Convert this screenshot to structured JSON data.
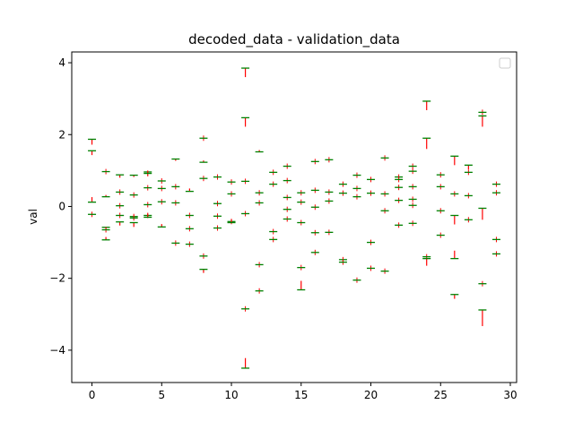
{
  "chart_data": {
    "type": "scatter",
    "title": "decoded_data - validation_data",
    "xlabel": "",
    "ylabel": "val",
    "xlim": [
      -1.45,
      30.45
    ],
    "ylim": [
      -4.9,
      4.3
    ],
    "xticks": [
      0,
      5,
      10,
      15,
      20,
      25,
      30
    ],
    "yticks": [
      -4,
      -2,
      0,
      2,
      4
    ],
    "xtick_labels": [
      "0",
      "5",
      "10",
      "15",
      "20",
      "25",
      "30"
    ],
    "ytick_labels": [
      "−4",
      "−2",
      "0",
      "2",
      "4"
    ],
    "grid": false,
    "legend": {
      "placement": "top-right",
      "entries": []
    },
    "colors": {
      "decoded_marker": "#008000",
      "difference_line": "#ff0000"
    },
    "series": [
      {
        "x": [
          0,
          0,
          0,
          0,
          1,
          1,
          1,
          1,
          1,
          2,
          2,
          2,
          2,
          2,
          3,
          3,
          3,
          3,
          3,
          4,
          4,
          4,
          4,
          4,
          4,
          5,
          5,
          5,
          5,
          6,
          6,
          6,
          6,
          7,
          7,
          7,
          7,
          8,
          8,
          8,
          8,
          8,
          9,
          9,
          9,
          9,
          10,
          10,
          10,
          10,
          11,
          11,
          11,
          11,
          11,
          11,
          12,
          12,
          12,
          12,
          12,
          13,
          13,
          13,
          13,
          14,
          14,
          14,
          14,
          14,
          15,
          15,
          15,
          15,
          15,
          16,
          16,
          16,
          16,
          16,
          17,
          17,
          17,
          17,
          18,
          18,
          18,
          18,
          19,
          19,
          19,
          19,
          20,
          20,
          20,
          20,
          21,
          21,
          21,
          21,
          22,
          22,
          22,
          22,
          22,
          23,
          23,
          23,
          23,
          23,
          23,
          24,
          24,
          24,
          24,
          25,
          25,
          25,
          25,
          26,
          26,
          26,
          26,
          26,
          27,
          27,
          27,
          27,
          28,
          28,
          28,
          28,
          28,
          29,
          29,
          29,
          29
        ],
        "y": [
          1.87,
          1.55,
          0.12,
          -0.22,
          0.97,
          0.27,
          -0.58,
          -0.65,
          -0.93,
          0.88,
          0.4,
          0.02,
          -0.25,
          -0.43,
          0.87,
          0.32,
          -0.28,
          -0.32,
          -0.45,
          0.96,
          0.92,
          0.52,
          0.05,
          -0.25,
          -0.3,
          0.71,
          0.5,
          0.13,
          -0.57,
          1.32,
          0.55,
          0.1,
          -1.02,
          0.42,
          -0.25,
          -0.62,
          -1.05,
          1.9,
          1.23,
          0.78,
          -1.38,
          -1.75,
          0.82,
          0.08,
          -0.27,
          -0.6,
          0.68,
          0.35,
          -0.42,
          -0.45,
          3.85,
          2.47,
          0.7,
          -0.2,
          -2.85,
          -4.5,
          1.52,
          0.38,
          0.1,
          -1.62,
          -2.35,
          0.95,
          0.62,
          -0.7,
          -0.92,
          1.12,
          0.72,
          0.25,
          -0.08,
          -0.35,
          0.38,
          0.12,
          -0.45,
          -1.7,
          -2.32,
          1.25,
          0.45,
          -0.02,
          -0.73,
          -1.28,
          1.3,
          0.4,
          0.15,
          -0.72,
          0.62,
          0.37,
          -1.48,
          -1.55,
          0.87,
          0.5,
          0.27,
          -2.05,
          0.75,
          0.37,
          -1.0,
          -1.72,
          1.35,
          0.35,
          -0.12,
          -1.8,
          0.82,
          0.75,
          0.53,
          0.17,
          -0.52,
          1.12,
          0.98,
          0.55,
          0.2,
          0.03,
          -0.47,
          2.93,
          1.9,
          -1.4,
          -1.45,
          0.88,
          0.55,
          -0.12,
          -0.8,
          1.4,
          0.35,
          -0.25,
          -2.45,
          -1.45,
          1.15,
          0.95,
          0.3,
          -0.37,
          2.62,
          2.52,
          -0.05,
          -2.15,
          -2.88,
          0.62,
          0.38,
          -0.92,
          -1.32
        ],
        "diff": [
          -0.15,
          -0.12,
          0.14,
          0.0,
          0.0,
          0.05,
          -0.05,
          0.0,
          0.08,
          -0.08,
          0.0,
          0.0,
          0.0,
          -0.1,
          -0.05,
          0.0,
          0.0,
          0.0,
          -0.12,
          -0.12,
          0.08,
          0.0,
          0.0,
          0.0,
          0.1,
          0.0,
          0.0,
          0.0,
          0.08,
          -0.05,
          0.0,
          0.0,
          0.0,
          0.08,
          0.0,
          0.0,
          0.0,
          0.0,
          0.05,
          0.0,
          0.0,
          -0.1,
          0.0,
          0.0,
          0.0,
          0.0,
          0.0,
          0.0,
          0.0,
          0.1,
          -0.25,
          -0.25,
          0.0,
          0.0,
          0.0,
          0.28,
          0.05,
          0.0,
          0.0,
          0.0,
          0.0,
          0.0,
          0.0,
          0.0,
          0.0,
          0.0,
          0.0,
          0.0,
          0.0,
          0.0,
          0.0,
          0.0,
          0.0,
          0.0,
          0.25,
          0.0,
          0.0,
          0.0,
          0.0,
          0.0,
          0.0,
          0.0,
          0.0,
          0.0,
          0.0,
          0.0,
          0.0,
          0.0,
          0.0,
          0.0,
          0.0,
          0.0,
          0.0,
          0.0,
          0.0,
          0.0,
          0.0,
          0.0,
          0.0,
          0.0,
          0.0,
          0.0,
          0.0,
          0.0,
          0.0,
          0.0,
          0.0,
          0.0,
          0.0,
          0.0,
          0.0,
          -0.25,
          -0.3,
          0.0,
          -0.2,
          0.0,
          0.0,
          0.0,
          0.0,
          -0.25,
          0.0,
          -0.25,
          -0.12,
          0.22,
          -0.12,
          0.0,
          0.0,
          0.0,
          0.0,
          -0.3,
          -0.32,
          0.0,
          -0.45,
          0.0,
          0.0,
          0.0,
          0.0
        ]
      }
    ]
  }
}
